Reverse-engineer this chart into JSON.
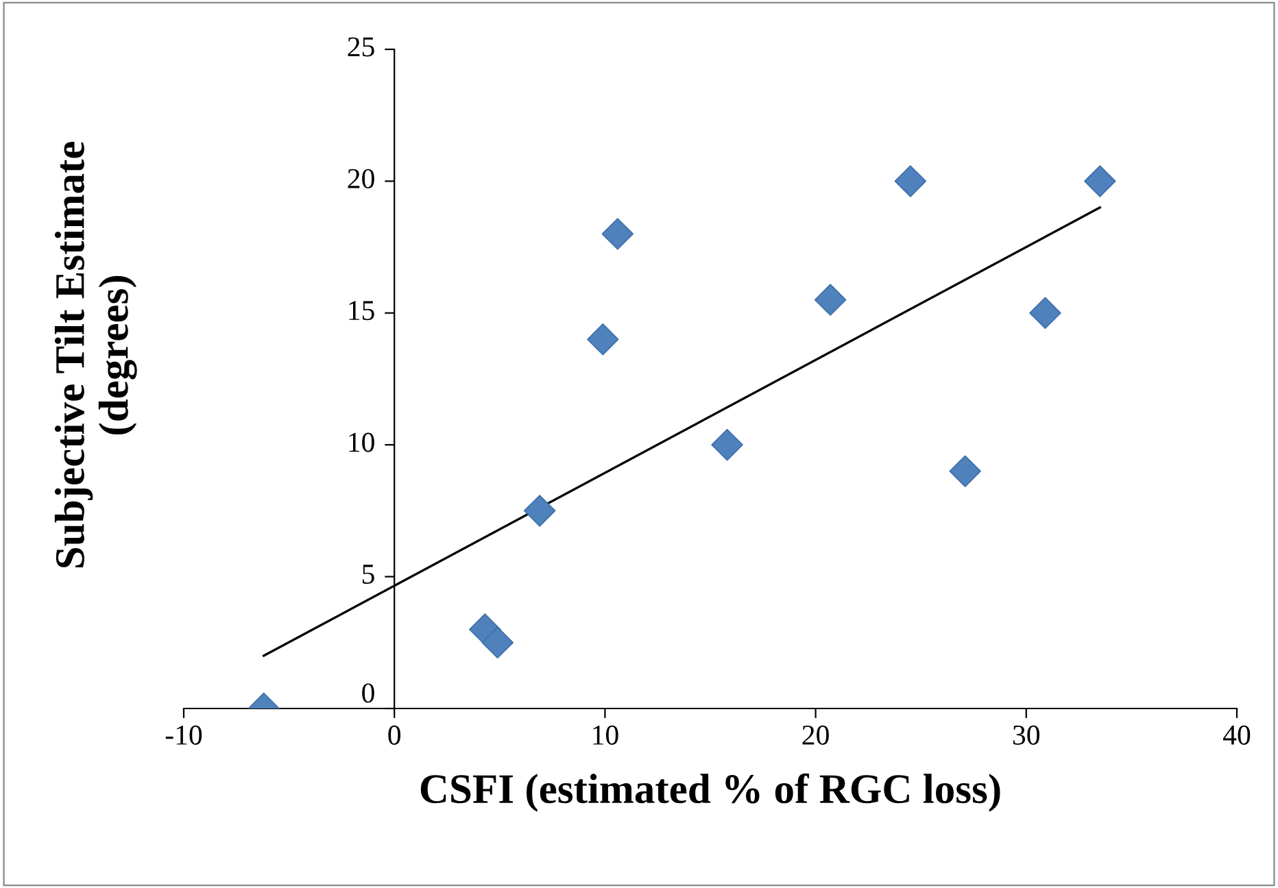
{
  "chart_data": {
    "type": "scatter",
    "xlabel": "CSFI (estimated % of RGC loss)",
    "ylabel": "Subjective Tilt Estimate\n(degrees)",
    "series": [
      {
        "color": "#4f81bd",
        "marker": "diamond",
        "x": [
          -6.2,
          4.3,
          4.9,
          6.9,
          9.9,
          10.6,
          15.8,
          20.7,
          24.5,
          27.1,
          30.9,
          33.5
        ],
        "values": [
          0,
          3,
          2.5,
          7.5,
          14,
          18,
          10,
          15.5,
          20,
          9,
          15,
          20
        ]
      },
      {
        "type": "line",
        "color": "#000000",
        "marker": "none",
        "x": [
          -6.2,
          33.5
        ],
        "values": [
          2,
          19
        ]
      }
    ],
    "xlim": [
      -10,
      40
    ],
    "ylim": [
      0,
      25
    ],
    "xticks": [
      -10,
      0,
      10,
      20,
      30,
      40
    ],
    "yticks": [
      0,
      5,
      10,
      15,
      20,
      25
    ],
    "grid": false,
    "legend": false
  }
}
